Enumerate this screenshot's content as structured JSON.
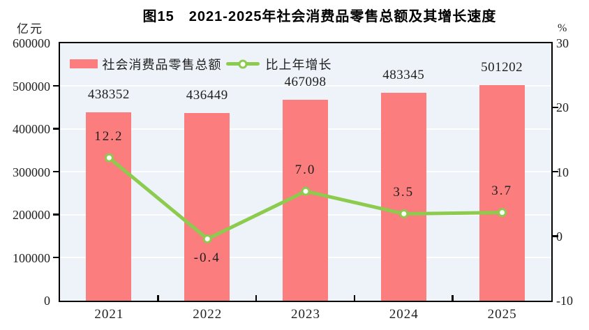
{
  "chart_data": {
    "type": "bar",
    "title": "图15　2021-2025年社会消费品零售总额及其增长速度",
    "categories": [
      "2021",
      "2022",
      "2023",
      "2024",
      "2025"
    ],
    "series": [
      {
        "name": "社会消费品零售总额",
        "type": "bar",
        "axis": "left",
        "values": [
          438352,
          436449,
          467098,
          483345,
          501202
        ],
        "value_labels": [
          "438352",
          "436449",
          "467098",
          "483345",
          "501202"
        ]
      },
      {
        "name": "比上年增长",
        "type": "line",
        "axis": "right",
        "values": [
          12.2,
          -0.4,
          7.0,
          3.5,
          3.7
        ],
        "point_labels": [
          "12.2",
          "-0.4",
          "7.0",
          "3.5",
          "3.7"
        ],
        "label_side": [
          "above",
          "below",
          "above",
          "above",
          "above"
        ]
      }
    ],
    "left_axis": {
      "unit": "亿元",
      "min": 0,
      "max": 600000,
      "tick_values": [
        600000,
        500000,
        400000,
        300000,
        200000,
        100000,
        0
      ],
      "tick_labels": [
        "600000",
        "500000",
        "400000",
        "300000",
        "200000",
        "100000",
        "0"
      ]
    },
    "right_axis": {
      "unit": "%",
      "min": -10,
      "max": 30,
      "tick_values": [
        30,
        20,
        10,
        0,
        -10
      ],
      "tick_labels": [
        "30",
        "20",
        "10",
        "0",
        "-10"
      ],
      "outer_tick_values": [
        20,
        10,
        0
      ]
    },
    "grid": {
      "horizontal_at": [
        500000,
        400000,
        300000,
        200000,
        100000
      ]
    },
    "legend_position": "top-left",
    "colors": {
      "bar": "#fb7d7d",
      "line": "#8ccb4e",
      "marker_fill": "#ffffff",
      "plot_bg": "#edf3f8",
      "grid": "#ffffff",
      "axis": "#000000",
      "text": "#1f1f1f"
    }
  }
}
